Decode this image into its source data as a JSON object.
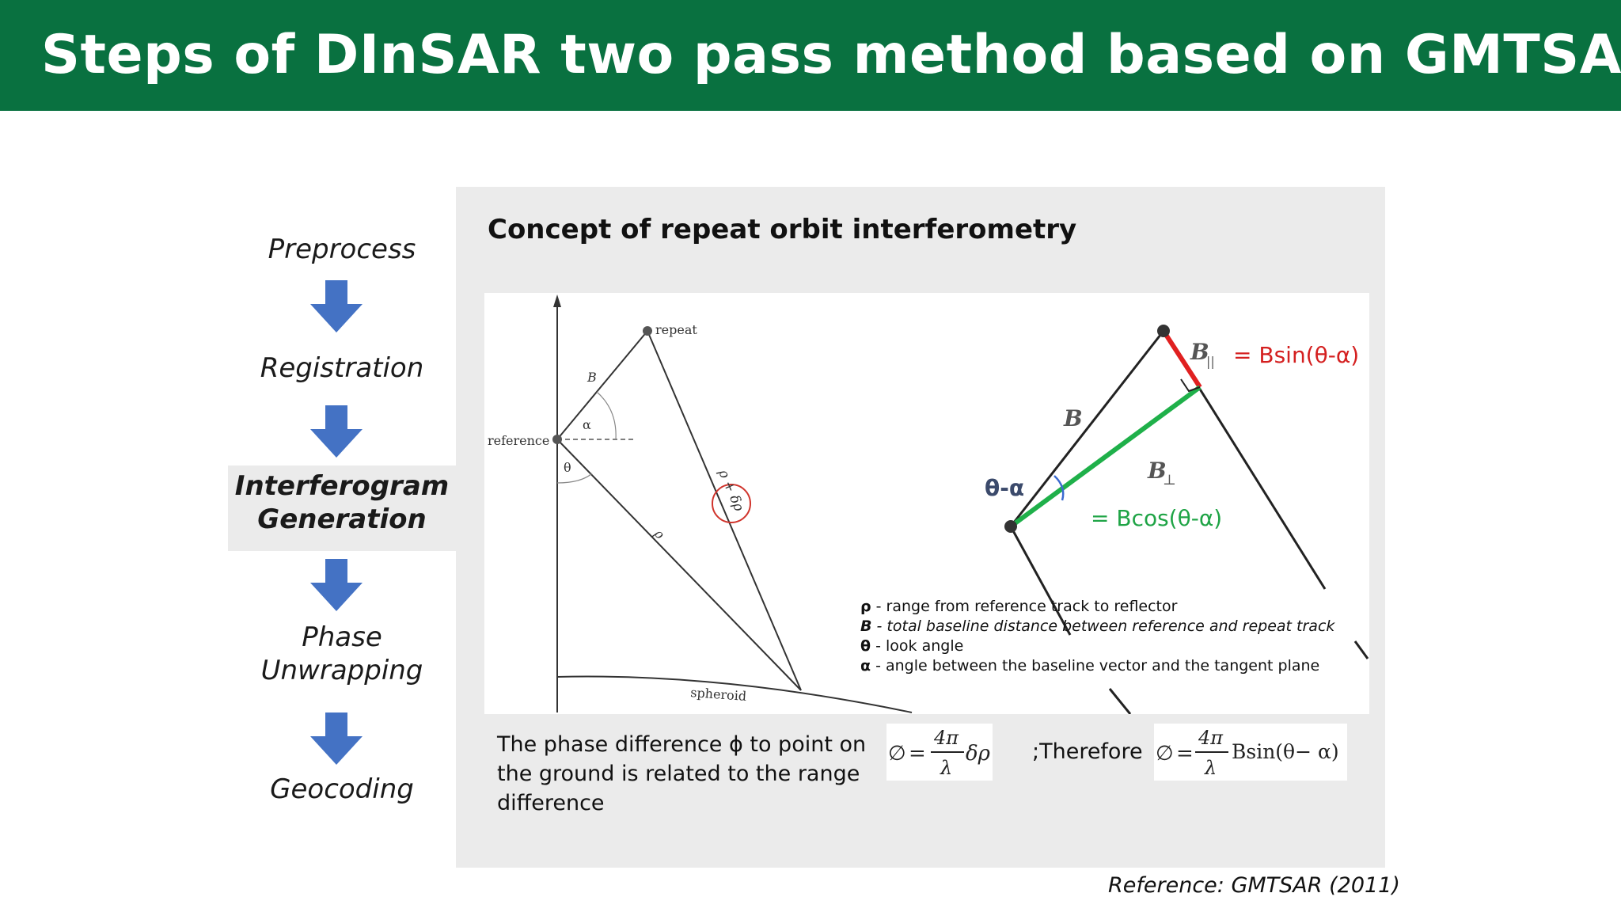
{
  "title": "Steps of DInSAR two pass method based on GMTSAR",
  "steps": [
    {
      "label": "Preprocess"
    },
    {
      "label": "Registration"
    },
    {
      "line1": "Interferogram",
      "line2": "Generation",
      "active": true
    },
    {
      "line1": "Phase",
      "line2": "Unwrapping"
    },
    {
      "label": "Geocoding"
    }
  ],
  "panel": {
    "title": "Concept of repeat orbit interferometry",
    "left_figure": {
      "labels": {
        "repeat": "repeat",
        "reference": "reference",
        "B": "B",
        "alpha": "α",
        "theta": "θ",
        "rho": "ρ",
        "rho_delta": "ρ + δρ",
        "spheroid": "spheroid"
      }
    },
    "right_figure": {
      "B": "B",
      "B_parallel": "B",
      "B_parallel_sub": "||",
      "B_perp": "B",
      "B_perp_sub": "⊥",
      "theta_alpha": "θ-α",
      "bsin": "= Bsin(θ-α)",
      "bcos": "= Bcos(θ-α)"
    },
    "legend": [
      {
        "symbol": "ρ",
        "text": " - range from reference track to reflector",
        "italic": false
      },
      {
        "symbol": "B",
        "text": " - total baseline distance between reference and repeat track",
        "italic": true
      },
      {
        "symbol": "θ",
        "text": " - look angle",
        "italic": false
      },
      {
        "symbol": "α",
        "text": " - angle between the baseline vector and the tangent plane",
        "italic": false
      }
    ],
    "caption": "The phase difference ϕ to point on the ground is related to the range difference",
    "formula1": {
      "lhs": "∅",
      "eq": "=",
      "num": "4π",
      "den": "λ",
      "rhs": "δρ"
    },
    "therefore": ";Therefore",
    "formula2": {
      "lhs": "∅",
      "eq": "=",
      "num": "4π",
      "den": "λ",
      "rhs": "Bsin(θ− α)"
    }
  },
  "reference": "Reference: GMTSAR (2011)",
  "colors": {
    "header": "#097140",
    "arrow": "#4472c4",
    "b_parallel": "#e02020",
    "b_perp": "#1fb04a",
    "dark_blue_label": "#3b4a6b"
  }
}
